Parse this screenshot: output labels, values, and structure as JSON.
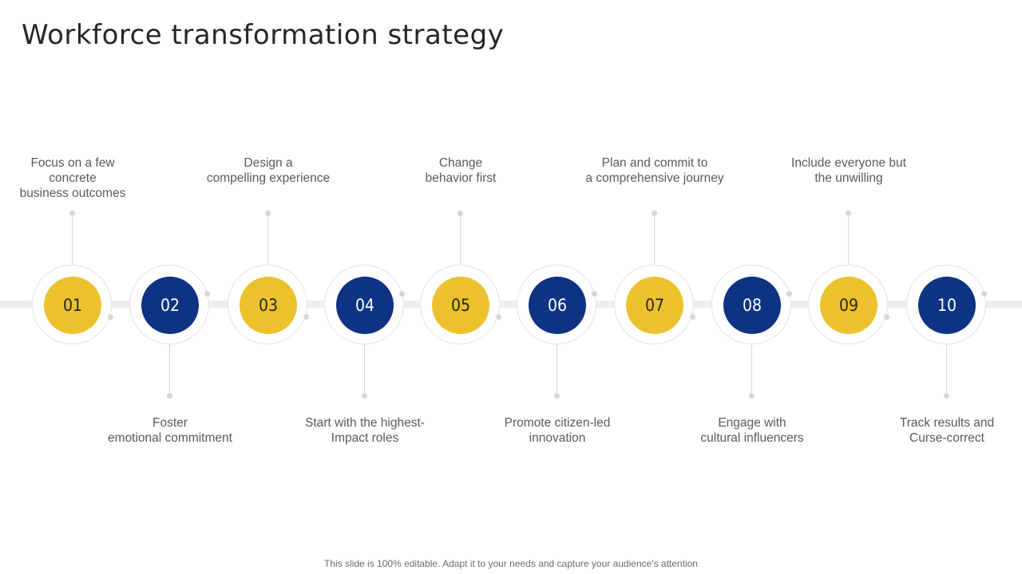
{
  "title": "Workforce transformation strategy",
  "steps": [
    {
      "number": "01",
      "lines": [
        "Focus on a few",
        "concrete",
        "business outcomes"
      ]
    },
    {
      "number": "02",
      "lines": [
        "Foster",
        "emotional commitment"
      ]
    },
    {
      "number": "03",
      "lines": [
        "Design a",
        "compelling experience"
      ]
    },
    {
      "number": "04",
      "lines": [
        "Start with the highest-",
        "Impact roles"
      ]
    },
    {
      "number": "05",
      "lines": [
        "Change",
        "behavior first"
      ]
    },
    {
      "number": "06",
      "lines": [
        "Promote citizen-led",
        "innovation"
      ]
    },
    {
      "number": "07",
      "lines": [
        "Plan and commit to",
        "a comprehensive journey"
      ]
    },
    {
      "number": "08",
      "lines": [
        "Engage with",
        "cultural  influencers"
      ]
    },
    {
      "number": "09",
      "lines": [
        "Include  everyone but",
        "the unwilling"
      ]
    },
    {
      "number": "10",
      "lines": [
        "Track results and",
        "Curse-correct"
      ]
    }
  ],
  "footer": "This slide is 100% editable. Adapt it to your needs and capture your audience's attention",
  "colors": {
    "accent_yellow": "#ebc22c",
    "accent_blue": "#0e3382",
    "track": "#eeeeee",
    "title": "#262626",
    "text": "#595959"
  }
}
